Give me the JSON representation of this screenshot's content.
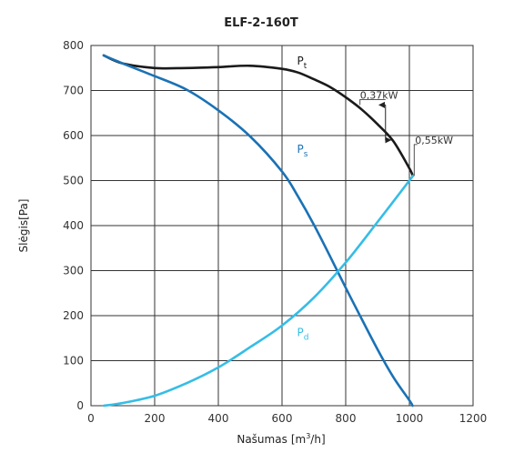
{
  "chart_data": {
    "type": "line",
    "title": "ELF-2-160T",
    "xlabel": "Našumas",
    "xlabel_unit_pre": "[m",
    "xlabel_unit_sup": "3",
    "xlabel_unit_post": "/h]",
    "ylabel": "Slėgis[Pa]",
    "xlim": [
      0,
      1200
    ],
    "ylim": [
      0,
      800
    ],
    "xticks": [
      0,
      200,
      400,
      600,
      800,
      1000,
      1200
    ],
    "yticks": [
      0,
      100,
      200,
      300,
      400,
      500,
      600,
      700,
      800
    ],
    "grid": true,
    "series": [
      {
        "key": "pt",
        "label_main": "P",
        "label_sub": "t",
        "label_at": [
          630,
          758
        ],
        "color": "#1a1a1a",
        "x": [
          40,
          100,
          200,
          300,
          400,
          500,
          600,
          650,
          700,
          750,
          800,
          850,
          900,
          950,
          1000,
          1010
        ],
        "y": [
          778,
          760,
          750,
          750,
          752,
          755,
          748,
          740,
          725,
          708,
          685,
          658,
          625,
          587,
          527,
          512
        ]
      },
      {
        "key": "ps",
        "label_main": "P",
        "label_sub": "s",
        "label_at": [
          630,
          562
        ],
        "color": "#1a72b5",
        "x": [
          40,
          100,
          200,
          300,
          400,
          500,
          600,
          650,
          700,
          750,
          800,
          850,
          900,
          950,
          1000,
          1010
        ],
        "y": [
          778,
          760,
          732,
          702,
          656,
          598,
          520,
          465,
          402,
          333,
          262,
          193,
          125,
          63,
          12,
          0
        ]
      },
      {
        "key": "pd",
        "label_main": "P",
        "label_sub": "d",
        "label_at": [
          630,
          155
        ],
        "color": "#35bde6",
        "x": [
          40,
          100,
          200,
          300,
          400,
          500,
          600,
          700,
          800,
          900,
          1000,
          1010
        ],
        "y": [
          0,
          6,
          22,
          50,
          85,
          130,
          178,
          240,
          318,
          408,
          500,
          510
        ]
      }
    ],
    "annotations": [
      {
        "label": "0,37kW",
        "at": [
          845,
          682
        ]
      },
      {
        "label": "0,55kW",
        "at": [
          1018,
          582
        ]
      }
    ]
  }
}
